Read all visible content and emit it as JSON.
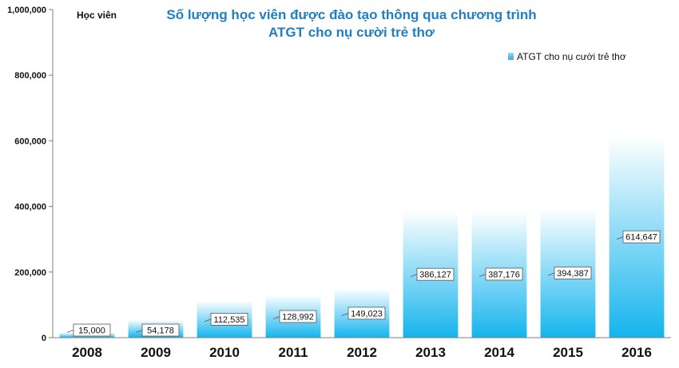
{
  "chart_data": {
    "type": "bar",
    "title_lines": [
      "Số lượng học viên được đào tạo thông qua chương trình",
      "ATGT cho nụ cười trẻ thơ"
    ],
    "ylabel": "Học viên",
    "ylim": [
      0,
      1000000
    ],
    "yticks": [
      "0",
      "200,000",
      "400,000",
      "600,000",
      "800,000",
      "1,000,000"
    ],
    "categories": [
      "2008",
      "2009",
      "2010",
      "2011",
      "2012",
      "2013",
      "2014",
      "2015",
      "2016"
    ],
    "series": [
      {
        "name": "ATGT cho nụ cười trẻ thơ",
        "values": [
          15000,
          54178,
          112535,
          128992,
          149023,
          386127,
          387176,
          394387,
          614647
        ],
        "labels": [
          "15,000",
          "54,178",
          "112,535",
          "128,992",
          "149,023",
          "386,127",
          "387,176",
          "394,387",
          "614,647"
        ]
      }
    ],
    "legend_position": "top-right",
    "grid": false,
    "colors": {
      "bar_top": "#ffffff",
      "bar_bottom": "#14b4ee",
      "title": "#1f7fc4",
      "legend_swatch": "#3aa6e0"
    }
  }
}
